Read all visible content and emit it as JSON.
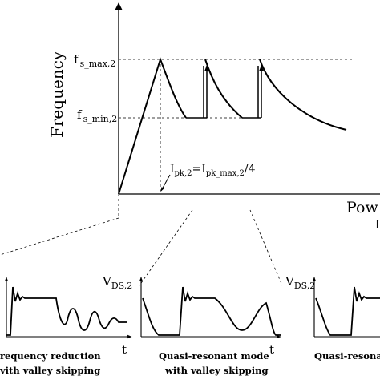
{
  "top_chart": {
    "ylabel": "Frequency",
    "xlabel": "Pow",
    "xlabel_tail": "[",
    "ytick_max": {
      "main": "f",
      "sub": "s_max,2"
    },
    "ytick_min": {
      "main": "f",
      "sub": "s_min,2"
    },
    "annotation": {
      "p1": "I",
      "s1": "pk,2",
      "p2": "=I",
      "s2": "pk_max,2",
      "p3": "/4"
    }
  },
  "waveforms": [
    {
      "caption_line1": "requency reduction",
      "caption_line2": "vith valley skipping",
      "t_label": "t",
      "v_label": ""
    },
    {
      "caption_line1": "Quasi-resonant mode",
      "caption_line2": "with valley skipping",
      "t_label": "t",
      "v_label_main": "V",
      "v_label_sub": "DS,2"
    },
    {
      "caption_line1": "Quasi-resona",
      "caption_line2": "",
      "t_label": "",
      "v_label_main": "V",
      "v_label_sub": "DS,2"
    }
  ]
}
